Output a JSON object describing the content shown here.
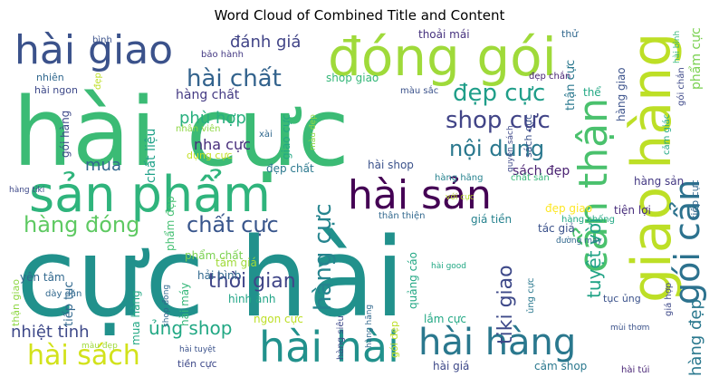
{
  "title": "Word Cloud of Combined Title and Content",
  "palette": [
    "#440154",
    "#482576",
    "#414487",
    "#35608d",
    "#2a788e",
    "#21918c",
    "#22a884",
    "#43bf71",
    "#7ad151",
    "#bddf26",
    "#fde725"
  ],
  "words": [
    {
      "text": "cực hài",
      "size": 120,
      "color": "#21918c",
      "vertical": false
    },
    {
      "text": "hài cực",
      "size": 104,
      "color": "#3bbb75",
      "vertical": false
    },
    {
      "text": "sản phẩm",
      "size": 54,
      "color": "#2fb47c",
      "vertical": false
    },
    {
      "text": "đóng gói",
      "size": 58,
      "color": "#9fda3a",
      "vertical": false
    },
    {
      "text": "giao hàng",
      "size": 60,
      "color": "#bddf26",
      "vertical": true
    },
    {
      "text": "hài giao",
      "size": 44,
      "color": "#3b528b",
      "vertical": false
    },
    {
      "text": "hài sản",
      "size": 44,
      "color": "#440154",
      "vertical": false
    },
    {
      "text": "cẩn thận",
      "size": 44,
      "color": "#4ac16d",
      "vertical": true
    },
    {
      "text": "gói cẩn",
      "size": 38,
      "color": "#2c728e",
      "vertical": true
    },
    {
      "text": "hài hài",
      "size": 46,
      "color": "#21918c",
      "vertical": false
    },
    {
      "text": "hài hàng",
      "size": 40,
      "color": "#2a788e",
      "vertical": false
    },
    {
      "text": "hài sách",
      "size": 30,
      "color": "#d2e21b",
      "vertical": false
    },
    {
      "text": "hài chất",
      "size": 26,
      "color": "#33638d",
      "vertical": false
    },
    {
      "text": "đẹp cực",
      "size": 26,
      "color": "#1f9e89",
      "vertical": false
    },
    {
      "text": "shop cực",
      "size": 26,
      "color": "#414487",
      "vertical": false
    },
    {
      "text": "nội dung",
      "size": 24,
      "color": "#2a788e",
      "vertical": false
    },
    {
      "text": "hàng đóng",
      "size": 24,
      "color": "#5ec962",
      "vertical": false
    },
    {
      "text": "chất cực",
      "size": 24,
      "color": "#39568c",
      "vertical": false
    },
    {
      "text": "thời gian",
      "size": 22,
      "color": "#404688",
      "vertical": false
    },
    {
      "text": "hàng cực",
      "size": 26,
      "color": "#25848e",
      "vertical": true
    },
    {
      "text": "tiki giao",
      "size": 22,
      "color": "#3e4989",
      "vertical": true
    },
    {
      "text": "hàng đẹp",
      "size": 18,
      "color": "#2a788e",
      "vertical": true
    },
    {
      "text": "tuyệt vời",
      "size": 20,
      "color": "#20a386",
      "vertical": true
    },
    {
      "text": "nhiệt tình",
      "size": 18,
      "color": "#3e4989",
      "vertical": false
    },
    {
      "text": "ủng shop",
      "size": 20,
      "color": "#22a884",
      "vertical": false
    },
    {
      "text": "đánh giá",
      "size": 18,
      "color": "#414487",
      "vertical": false
    },
    {
      "text": "phù hợp",
      "size": 18,
      "color": "#2ab07f",
      "vertical": false
    },
    {
      "text": "mua",
      "size": 18,
      "color": "#31688e",
      "vertical": false
    },
    {
      "text": "nha cực",
      "size": 16,
      "color": "#472d7b",
      "vertical": false
    },
    {
      "text": "hàng chất",
      "size": 14,
      "color": "#443a83",
      "vertical": false
    },
    {
      "text": "sách đẹp",
      "size": 14,
      "color": "#481f70",
      "vertical": false
    },
    {
      "text": "phẩm cực",
      "size": 14,
      "color": "#7ad151",
      "vertical": true
    },
    {
      "text": "chất liệu",
      "size": 14,
      "color": "#1fa188",
      "vertical": true
    },
    {
      "text": "thoải mái",
      "size": 12,
      "color": "#46327e",
      "vertical": false
    },
    {
      "text": "shop giao",
      "size": 12,
      "color": "#35b779",
      "vertical": false
    },
    {
      "text": "đẹp chất",
      "size": 12,
      "color": "#2a788e",
      "vertical": false
    },
    {
      "text": "hài shop",
      "size": 12,
      "color": "#3b528b",
      "vertical": false
    },
    {
      "text": "giá tiền",
      "size": 12,
      "color": "#26828e",
      "vertical": false
    },
    {
      "text": "phẩm chất",
      "size": 12,
      "color": "#7ad151",
      "vertical": false
    },
    {
      "text": "tác giả",
      "size": 12,
      "color": "#3b528b",
      "vertical": false
    },
    {
      "text": "tầm giá",
      "size": 12,
      "color": "#a0da39",
      "vertical": false
    },
    {
      "text": "hải bình",
      "size": 12,
      "color": "#31688e",
      "vertical": false
    },
    {
      "text": "hình ảnh",
      "size": 12,
      "color": "#20a486",
      "vertical": false
    },
    {
      "text": "yên tâm",
      "size": 12,
      "color": "#31688e",
      "vertical": false
    },
    {
      "text": "ngon cực",
      "size": 12,
      "color": "#bddf26",
      "vertical": false
    },
    {
      "text": "lắm cực",
      "size": 12,
      "color": "#22a884",
      "vertical": false
    },
    {
      "text": "hài giá",
      "size": 12,
      "color": "#3e4989",
      "vertical": false
    },
    {
      "text": "cảm shop",
      "size": 12,
      "color": "#2a788e",
      "vertical": false
    },
    {
      "text": "tiện lợi",
      "size": 12,
      "color": "#472d7b",
      "vertical": false
    },
    {
      "text": "hàng sản",
      "size": 12,
      "color": "#443983",
      "vertical": false
    },
    {
      "text": "đẹp giao",
      "size": 12,
      "color": "#fde725",
      "vertical": false
    },
    {
      "text": "hàng chống",
      "size": 10,
      "color": "#22a884",
      "vertical": false
    },
    {
      "text": "hài ngon",
      "size": 11,
      "color": "#3e4989",
      "vertical": false
    },
    {
      "text": "nhiên",
      "size": 11,
      "color": "#31688e",
      "vertical": false
    },
    {
      "text": "bình",
      "size": 10,
      "color": "#3b528b",
      "vertical": false
    },
    {
      "text": "bảo hành",
      "size": 10,
      "color": "#443983",
      "vertical": false
    },
    {
      "text": "nhân viên",
      "size": 10,
      "color": "#8fd744",
      "vertical": false
    },
    {
      "text": "dụng cực",
      "size": 11,
      "color": "#c2df23",
      "vertical": false
    },
    {
      "text": "xài",
      "size": 10,
      "color": "#31688e",
      "vertical": false
    },
    {
      "text": "màu sắc",
      "size": 10,
      "color": "#3b528b",
      "vertical": false
    },
    {
      "text": "đẹp chắn",
      "size": 10,
      "color": "#482475",
      "vertical": false
    },
    {
      "text": "hàng hãng",
      "size": 10,
      "color": "#26828e",
      "vertical": false
    },
    {
      "text": "chất sản",
      "size": 10,
      "color": "#35b779",
      "vertical": false
    },
    {
      "text": "thân thiện",
      "size": 10,
      "color": "#31688e",
      "vertical": false
    },
    {
      "text": "với cực",
      "size": 9,
      "color": "#b5de2b",
      "vertical": false
    },
    {
      "text": "đường may",
      "size": 9,
      "color": "#31688e",
      "vertical": false
    },
    {
      "text": "hài good",
      "size": 9,
      "color": "#22a884",
      "vertical": false
    },
    {
      "text": "mùi thơm",
      "size": 9,
      "color": "#3b528b",
      "vertical": false
    },
    {
      "text": "hài tuyệt",
      "size": 9,
      "color": "#3b528b",
      "vertical": false
    },
    {
      "text": "màu đẹp",
      "size": 9,
      "color": "#a0da39",
      "vertical": false
    },
    {
      "text": "tiền cực",
      "size": 11,
      "color": "#3e4989",
      "vertical": false
    },
    {
      "text": "dày dặn",
      "size": 10,
      "color": "#31688e",
      "vertical": false
    },
    {
      "text": "hài túi",
      "size": 10,
      "color": "#482475",
      "vertical": false
    },
    {
      "text": "tục ủng",
      "size": 11,
      "color": "#3b528b",
      "vertical": false
    },
    {
      "text": "hàng tiki",
      "size": 9,
      "color": "#3e4989",
      "vertical": false
    },
    {
      "text": "hàng siêu",
      "size": 10,
      "color": "#3e4989",
      "vertical": true
    },
    {
      "text": "thận giao",
      "size": 11,
      "color": "#8fd744",
      "vertical": true
    },
    {
      "text": "tiếp tục",
      "size": 13,
      "color": "#31688e",
      "vertical": true
    },
    {
      "text": "hài máy",
      "size": 12,
      "color": "#35b779",
      "vertical": true
    },
    {
      "text": "mua hàng",
      "size": 12,
      "color": "#22a884",
      "vertical": true
    },
    {
      "text": "shop đóng",
      "size": 9,
      "color": "#31688e",
      "vertical": true
    },
    {
      "text": "hàng hãng",
      "size": 9,
      "color": "#31688e",
      "vertical": true
    },
    {
      "text": "gói hàng",
      "size": 12,
      "color": "#3e4989",
      "vertical": true
    },
    {
      "text": "giao cực",
      "size": 12,
      "color": "#22a884",
      "vertical": true
    },
    {
      "text": "phẩm đẹp",
      "size": 12,
      "color": "#43bf71",
      "vertical": true
    },
    {
      "text": "quảng cáo",
      "size": 12,
      "color": "#22a884",
      "vertical": true
    },
    {
      "text": "gói đẹp",
      "size": 11,
      "color": "#bddf26",
      "vertical": true
    },
    {
      "text": "ủng cực",
      "size": 10,
      "color": "#2a788e",
      "vertical": true
    },
    {
      "text": "giá hợp",
      "size": 10,
      "color": "#3e4989",
      "vertical": true
    },
    {
      "text": "thận cực",
      "size": 13,
      "color": "#2a788e",
      "vertical": true
    },
    {
      "text": "sách cực",
      "size": 11,
      "color": "#3b528b",
      "vertical": true
    },
    {
      "text": "hàng giao",
      "size": 12,
      "color": "#3b528b",
      "vertical": true
    },
    {
      "text": "cảm giác",
      "size": 10,
      "color": "#22a884",
      "vertical": true
    },
    {
      "text": "gói chắn",
      "size": 10,
      "color": "#3e4989",
      "vertical": true
    },
    {
      "text": "tiếp cực",
      "size": 11,
      "color": "#31688e",
      "vertical": true
    },
    {
      "text": "màu đẹp",
      "size": 9,
      "color": "#8fd744",
      "vertical": true
    },
    {
      "text": "quyền sách",
      "size": 9,
      "color": "#3e4989",
      "vertical": true
    },
    {
      "text": "thử",
      "size": 11,
      "color": "#31688e",
      "vertical": false
    },
    {
      "text": "thể",
      "size": 12,
      "color": "#22a884",
      "vertical": false
    },
    {
      "text": "đẹp",
      "size": 10,
      "color": "#bddf26",
      "vertical": true
    },
    {
      "text": "hài bình",
      "size": 9,
      "color": "#35b779",
      "vertical": true
    }
  ]
}
